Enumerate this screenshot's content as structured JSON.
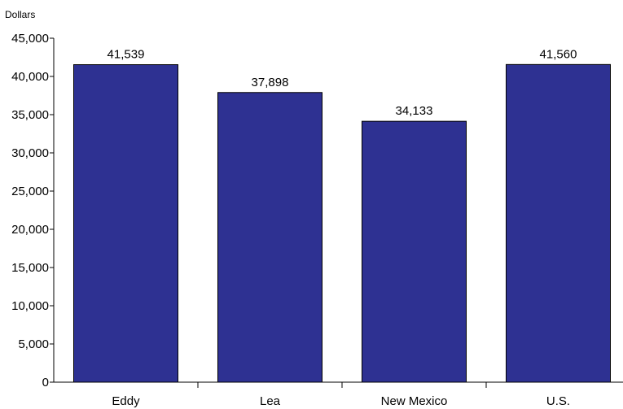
{
  "chart_data": {
    "type": "bar",
    "ylabel": "Dollars",
    "categories": [
      "Eddy",
      "Lea",
      "New Mexico",
      "U.S."
    ],
    "values": [
      41539,
      37898,
      34133,
      41560
    ],
    "data_labels": [
      "41,539",
      "37,898",
      "34,133",
      "41,560"
    ],
    "ylim": [
      0,
      45000
    ],
    "yticks": [
      0,
      5000,
      10000,
      15000,
      20000,
      25000,
      30000,
      35000,
      40000,
      45000
    ],
    "ytick_labels": [
      "0",
      "5,000",
      "10,000",
      "15,000",
      "20,000",
      "25,000",
      "30,000",
      "35,000",
      "40,000",
      "45,000"
    ],
    "grid": false,
    "colors": {
      "bar": "#2e3192",
      "bar_stroke": "#000000",
      "axis": "#000000"
    }
  }
}
